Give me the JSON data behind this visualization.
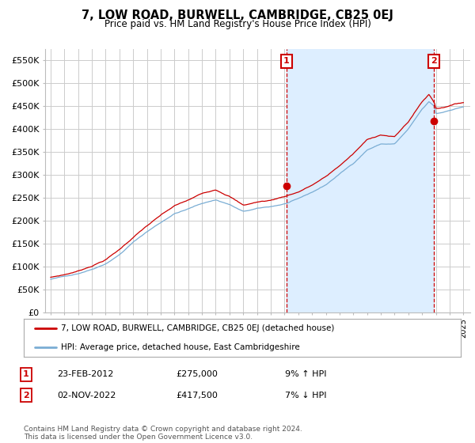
{
  "title": "7, LOW ROAD, BURWELL, CAMBRIDGE, CB25 0EJ",
  "subtitle": "Price paid vs. HM Land Registry's House Price Index (HPI)",
  "legend_house": "7, LOW ROAD, BURWELL, CAMBRIDGE, CB25 0EJ (detached house)",
  "legend_hpi": "HPI: Average price, detached house, East Cambridgeshire",
  "annotation1_label": "1",
  "annotation1_date": "23-FEB-2012",
  "annotation1_price": "£275,000",
  "annotation1_hpi": "9% ↑ HPI",
  "annotation2_label": "2",
  "annotation2_date": "02-NOV-2022",
  "annotation2_price": "£417,500",
  "annotation2_hpi": "7% ↓ HPI",
  "footnote": "Contains HM Land Registry data © Crown copyright and database right 2024.\nThis data is licensed under the Open Government Licence v3.0.",
  "house_color": "#cc0000",
  "hpi_color": "#7aadd4",
  "shade_color": "#ddeeff",
  "annotation_color": "#cc0000",
  "grid_color": "#cccccc",
  "bg_color": "#ffffff",
  "ylim": [
    0,
    575000
  ],
  "yticks": [
    0,
    50000,
    100000,
    150000,
    200000,
    250000,
    300000,
    350000,
    400000,
    450000,
    500000,
    550000
  ],
  "ytick_labels": [
    "£0",
    "£50K",
    "£100K",
    "£150K",
    "£200K",
    "£250K",
    "£300K",
    "£350K",
    "£400K",
    "£450K",
    "£500K",
    "£550K"
  ],
  "sale1_x": 2012.15,
  "sale1_y": 275000,
  "sale2_x": 2022.84,
  "sale2_y": 417500,
  "xmin": 1995,
  "xmax": 2025
}
